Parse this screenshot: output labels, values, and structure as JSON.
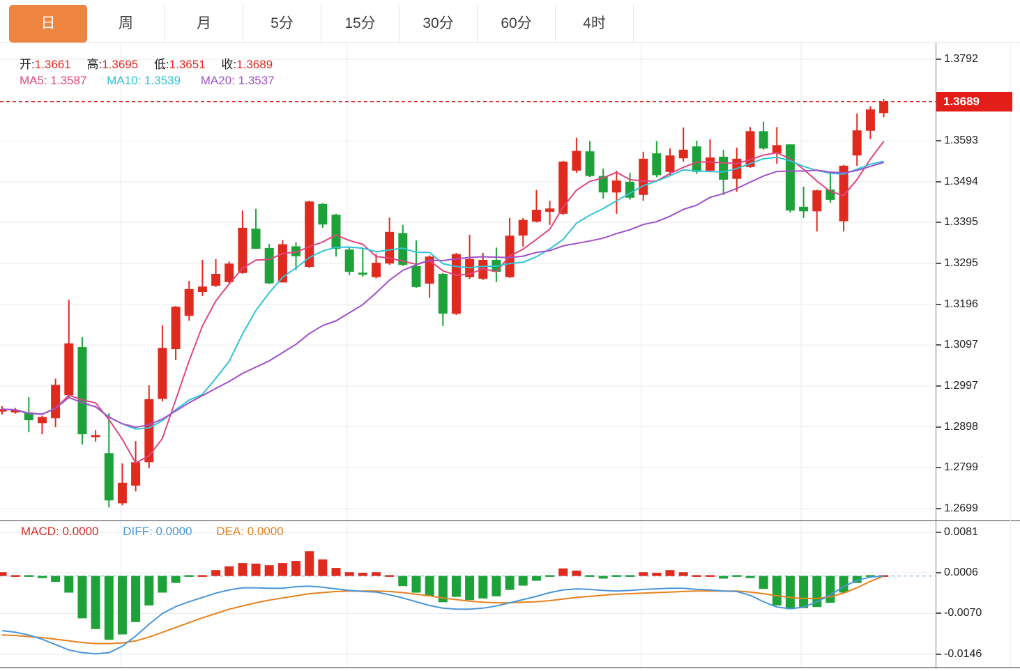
{
  "tabs": [
    {
      "label": "日",
      "active": true
    },
    {
      "label": "周",
      "active": false
    },
    {
      "label": "月",
      "active": false
    },
    {
      "label": "5分",
      "active": false
    },
    {
      "label": "15分",
      "active": false
    },
    {
      "label": "30分",
      "active": false
    },
    {
      "label": "60分",
      "active": false
    },
    {
      "label": "4时",
      "active": false
    }
  ],
  "legend": {
    "ohlc": [
      {
        "label": "开:",
        "value": "1.3661"
      },
      {
        "label": "高:",
        "value": "1.3695"
      },
      {
        "label": "低:",
        "value": "1.3651"
      },
      {
        "label": "收:",
        "value": "1.3689"
      }
    ],
    "ma": [
      {
        "label": "MA5:",
        "value": "1.3587",
        "color": "#e0457e"
      },
      {
        "label": "MA10:",
        "value": "1.3539",
        "color": "#2fc3d8"
      },
      {
        "label": "MA20:",
        "value": "1.3537",
        "color": "#a04fc8"
      }
    ],
    "macd": [
      {
        "label": "MACD:",
        "value": "0.0000",
        "color": "#d62e22"
      },
      {
        "label": "DIFF:",
        "value": "0.0000",
        "color": "#4a96d8"
      },
      {
        "label": "DEA:",
        "value": "0.0000",
        "color": "#e5821e"
      }
    ]
  },
  "axes": {
    "price_ticks": [
      "1.3792",
      "1.3593",
      "1.3494",
      "1.3395",
      "1.3295",
      "1.3196",
      "1.3097",
      "1.2997",
      "1.2898",
      "1.2799",
      "1.2699"
    ],
    "macd_ticks": [
      "0.0081",
      "0.0006",
      "-0.0070",
      "-0.0146"
    ],
    "current_price_badge": "1.3689"
  },
  "colors": {
    "bull_red": "#e02a1e",
    "bear_green": "#1da23a",
    "ma5_pink": "#e0457e",
    "ma10_cyan": "#2fc3d8",
    "ma20_purple": "#a04fc8",
    "diff_blue": "#4a96d8",
    "dea_orange": "#e5821e",
    "badge_red": "#e31d18",
    "tab_orange": "#ed8440",
    "grid": "#ebebf0",
    "macd_zero_dash": "#a9c9e6",
    "price_line_red": "#d42318"
  },
  "chart_data": {
    "type": "candlestick+macd",
    "title": "",
    "legend_position": "top-left",
    "grid": true,
    "price_axis_range": [
      1.2699,
      1.3792
    ],
    "macd_axis_range": [
      -0.0146,
      0.0081
    ],
    "current_price": 1.3689,
    "last_ohlc": {
      "open": 1.3661,
      "high": 1.3695,
      "low": 1.3651,
      "close": 1.3689
    },
    "ma_values": {
      "MA5": 1.3587,
      "MA10": 1.3539,
      "MA20": 1.3537
    },
    "candles": {
      "open": [
        1.2935,
        1.2936,
        1.2933,
        1.2907,
        1.2919,
        1.2975,
        1.3092,
        1.2874,
        1.2834,
        1.2712,
        1.2755,
        1.2812,
        1.2966,
        1.3087,
        1.3168,
        1.3226,
        1.3241,
        1.325,
        1.3272,
        1.338,
        1.3333,
        1.3249,
        1.3337,
        1.3287,
        1.344,
        1.3414,
        1.3329,
        1.3273,
        1.3262,
        1.3295,
        1.3369,
        1.3289,
        1.3246,
        1.327,
        1.3173,
        1.3262,
        1.3258,
        1.3304,
        1.3262,
        1.3363,
        1.3397,
        1.3421,
        1.3416,
        1.3521,
        1.3568,
        1.3508,
        1.3468,
        1.3494,
        1.3462,
        1.3563,
        1.3518,
        1.3551,
        1.358,
        1.3521,
        1.3555,
        1.3501,
        1.353,
        1.3617,
        1.3563,
        1.3585,
        1.3433,
        1.3422,
        1.3475,
        1.3398,
        1.3558,
        1.3618,
        1.3661
      ],
      "high": [
        1.2948,
        1.2944,
        1.297,
        1.2925,
        1.3015,
        1.3207,
        1.3116,
        1.289,
        1.2931,
        1.2809,
        1.2863,
        1.2999,
        1.3145,
        1.3192,
        1.3253,
        1.3304,
        1.3306,
        1.33,
        1.3424,
        1.3428,
        1.3343,
        1.3352,
        1.3347,
        1.3448,
        1.3442,
        1.3416,
        1.3334,
        1.3331,
        1.3318,
        1.3407,
        1.3389,
        1.3351,
        1.3315,
        1.3272,
        1.3321,
        1.3365,
        1.3321,
        1.3334,
        1.3406,
        1.3406,
        1.3474,
        1.3448,
        1.3545,
        1.3601,
        1.3593,
        1.3526,
        1.3521,
        1.3516,
        1.3567,
        1.3593,
        1.3575,
        1.3626,
        1.3594,
        1.3597,
        1.3572,
        1.3577,
        1.3627,
        1.364,
        1.3627,
        1.3585,
        1.3482,
        1.3475,
        1.3517,
        1.3535,
        1.366,
        1.3678,
        1.3695
      ],
      "low": [
        1.2928,
        1.293,
        1.2885,
        1.288,
        1.2897,
        1.297,
        1.2855,
        1.2862,
        1.2702,
        1.2707,
        1.2741,
        1.2797,
        1.296,
        1.306,
        1.3156,
        1.3216,
        1.3238,
        1.3246,
        1.327,
        1.333,
        1.3245,
        1.3249,
        1.3279,
        1.3284,
        1.3382,
        1.3312,
        1.3267,
        1.3263,
        1.3259,
        1.3292,
        1.3289,
        1.3236,
        1.3212,
        1.3143,
        1.317,
        1.3258,
        1.3255,
        1.325,
        1.326,
        1.3336,
        1.3395,
        1.3389,
        1.3413,
        1.3516,
        1.3505,
        1.3453,
        1.3416,
        1.345,
        1.3448,
        1.3505,
        1.351,
        1.3543,
        1.3513,
        1.3517,
        1.3462,
        1.347,
        1.3528,
        1.3572,
        1.3538,
        1.3419,
        1.3406,
        1.3373,
        1.3443,
        1.3373,
        1.3533,
        1.3598,
        1.3651
      ],
      "close": [
        1.2941,
        1.2938,
        1.2914,
        1.2922,
        1.3,
        1.3101,
        1.288,
        1.2878,
        1.2719,
        1.2762,
        1.2812,
        1.2965,
        1.309,
        1.319,
        1.3233,
        1.3239,
        1.327,
        1.3295,
        1.3382,
        1.3331,
        1.3247,
        1.3342,
        1.3313,
        1.3446,
        1.339,
        1.3331,
        1.3275,
        1.3268,
        1.3297,
        1.3372,
        1.3292,
        1.3238,
        1.3312,
        1.3173,
        1.3318,
        1.3306,
        1.3304,
        1.3275,
        1.3363,
        1.3401,
        1.3426,
        1.3429,
        1.3543,
        1.3569,
        1.3508,
        1.3468,
        1.3497,
        1.3455,
        1.355,
        1.351,
        1.3558,
        1.3572,
        1.3518,
        1.3553,
        1.3499,
        1.355,
        1.3617,
        1.3575,
        1.3583,
        1.3424,
        1.3422,
        1.3473,
        1.345,
        1.3533,
        1.3619,
        1.367,
        1.3689
      ]
    },
    "overlays": [
      {
        "name": "MA5",
        "period": 5,
        "color": "#e0457e"
      },
      {
        "name": "MA10",
        "period": 10,
        "color": "#2fc3d8"
      },
      {
        "name": "MA20",
        "period": 20,
        "color": "#a04fc8"
      }
    ],
    "macd": {
      "hist": [
        0.0007,
        0.0,
        -0.0001,
        -0.0004,
        -0.0011,
        -0.0031,
        -0.0079,
        -0.0099,
        -0.0119,
        -0.0109,
        -0.0086,
        -0.0055,
        -0.0031,
        -0.0013,
        -0.0002,
        0.0001,
        0.0011,
        0.0018,
        0.0024,
        0.0023,
        0.002,
        0.0024,
        0.0028,
        0.0046,
        0.0031,
        0.0015,
        0.0007,
        0.0006,
        0.0007,
        0.0003,
        -0.0019,
        -0.0031,
        -0.0038,
        -0.0049,
        -0.0039,
        -0.0045,
        -0.0042,
        -0.0038,
        -0.0026,
        -0.0018,
        -0.0009,
        -0.0001,
        0.0014,
        0.001,
        -0.0001,
        -0.0005,
        -0.0002,
        -0.0001,
        0.0007,
        0.0006,
        0.0011,
        0.0007,
        0.0002,
        0.0001,
        -0.0005,
        -0.0001,
        -0.0004,
        -0.0024,
        -0.0055,
        -0.0062,
        -0.006,
        -0.0058,
        -0.005,
        -0.0031,
        -0.0013,
        -0.0001,
        0.0
      ],
      "diff": [
        -0.0102,
        -0.0105,
        -0.011,
        -0.0118,
        -0.0128,
        -0.0138,
        -0.0143,
        -0.0145,
        -0.0143,
        -0.0131,
        -0.0112,
        -0.009,
        -0.007,
        -0.0057,
        -0.0048,
        -0.004,
        -0.0032,
        -0.0026,
        -0.0022,
        -0.0022,
        -0.0023,
        -0.0023,
        -0.002,
        -0.0019,
        -0.0021,
        -0.0024,
        -0.0027,
        -0.0029,
        -0.003,
        -0.0035,
        -0.0041,
        -0.0048,
        -0.0055,
        -0.006,
        -0.0062,
        -0.0062,
        -0.006,
        -0.0056,
        -0.005,
        -0.0044,
        -0.0038,
        -0.0031,
        -0.0026,
        -0.0024,
        -0.0025,
        -0.0027,
        -0.0028,
        -0.0027,
        -0.0025,
        -0.0024,
        -0.0023,
        -0.0023,
        -0.0025,
        -0.0026,
        -0.0028,
        -0.0029,
        -0.0036,
        -0.0048,
        -0.0058,
        -0.0061,
        -0.0058,
        -0.0048,
        -0.0035,
        -0.002,
        -0.0008,
        -0.0002,
        0.0
      ],
      "dea": [
        -0.011,
        -0.0111,
        -0.0113,
        -0.0115,
        -0.0118,
        -0.0121,
        -0.0124,
        -0.0126,
        -0.0126,
        -0.0125,
        -0.0121,
        -0.0114,
        -0.0105,
        -0.0096,
        -0.0087,
        -0.0078,
        -0.007,
        -0.0062,
        -0.0056,
        -0.005,
        -0.0045,
        -0.0041,
        -0.0037,
        -0.0033,
        -0.0031,
        -0.0029,
        -0.0028,
        -0.0028,
        -0.0028,
        -0.0029,
        -0.0031,
        -0.0034,
        -0.0037,
        -0.0041,
        -0.0044,
        -0.0047,
        -0.0049,
        -0.005,
        -0.005,
        -0.0049,
        -0.0048,
        -0.0046,
        -0.0043,
        -0.004,
        -0.0038,
        -0.0036,
        -0.0034,
        -0.0033,
        -0.0032,
        -0.0031,
        -0.003,
        -0.0029,
        -0.0028,
        -0.0028,
        -0.0028,
        -0.0028,
        -0.003,
        -0.0033,
        -0.0037,
        -0.004,
        -0.0042,
        -0.0042,
        -0.0039,
        -0.0032,
        -0.0022,
        -0.001,
        0.0
      ]
    }
  }
}
